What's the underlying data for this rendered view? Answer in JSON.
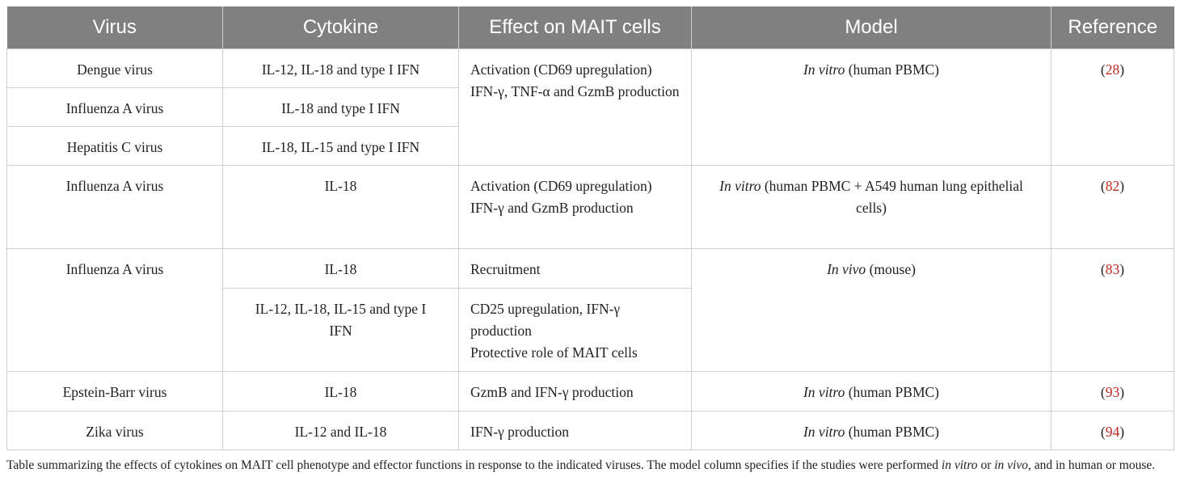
{
  "table": {
    "header": [
      "Virus",
      "Cytokine",
      "Effect on MAIT cells",
      "Model",
      "Reference"
    ],
    "rows": [
      {
        "virus": "Dengue virus",
        "cytokine": "IL-12, IL-18 and type I IFN",
        "effect": [
          "Activation (CD69 upregulation)",
          "IFN-γ, TNF-α and GzmB production"
        ],
        "model": [
          "In vitro",
          " (human PBMC)"
        ],
        "reference": [
          "(",
          "28",
          ")"
        ]
      },
      {
        "virus": "Influenza A virus",
        "cytokine": "IL-18 and type I IFN"
      },
      {
        "virus": "Hepatitis C virus",
        "cytokine": "IL-18, IL-15 and type I IFN"
      },
      {
        "virus": "Influenza A virus",
        "cytokine": "IL-18",
        "effect": [
          "Activation (CD69 upregulation)",
          "IFN-γ and GzmB production"
        ],
        "model": [
          "In vitro",
          " (human PBMC + A549 human lung epithelial cells)"
        ],
        "reference": [
          "(",
          "82",
          ")"
        ]
      },
      {
        "virus": "Influenza A virus",
        "cytokine": "IL-18",
        "effect": [
          "Recruitment"
        ],
        "model": [
          "In vivo",
          " (mouse)"
        ],
        "reference": [
          "(",
          "83",
          ")"
        ]
      },
      {
        "cytokine": "IL-12, IL-18, IL-15 and type I IFN",
        "effect": [
          "CD25 upregulation, IFN-γ production",
          "Protective role of MAIT cells"
        ]
      },
      {
        "virus": "Epstein-Barr virus",
        "cytokine": "IL-18",
        "effect": [
          "GzmB and IFN-γ production"
        ],
        "model": [
          "In vitro",
          " (human PBMC)"
        ],
        "reference": [
          "(",
          "93",
          ")"
        ]
      },
      {
        "virus": "Zika virus",
        "cytokine": "IL-12 and IL-18",
        "effect": [
          "IFN-γ production"
        ],
        "model": [
          "In vitro",
          " (human PBMC)"
        ],
        "reference": [
          "(",
          "94",
          ")"
        ]
      }
    ]
  },
  "caption": [
    {
      "text": "Table summarizing the effects of cytokines on MAIT cell phenotype and effector functions in response to the indicated viruses. The model column specifies if the studies were performed "
    },
    {
      "text": "in vitro",
      "italic": true
    },
    {
      "text": " or "
    },
    {
      "text": "in vivo",
      "italic": true
    },
    {
      "text": ", and in human or mouse."
    }
  ]
}
